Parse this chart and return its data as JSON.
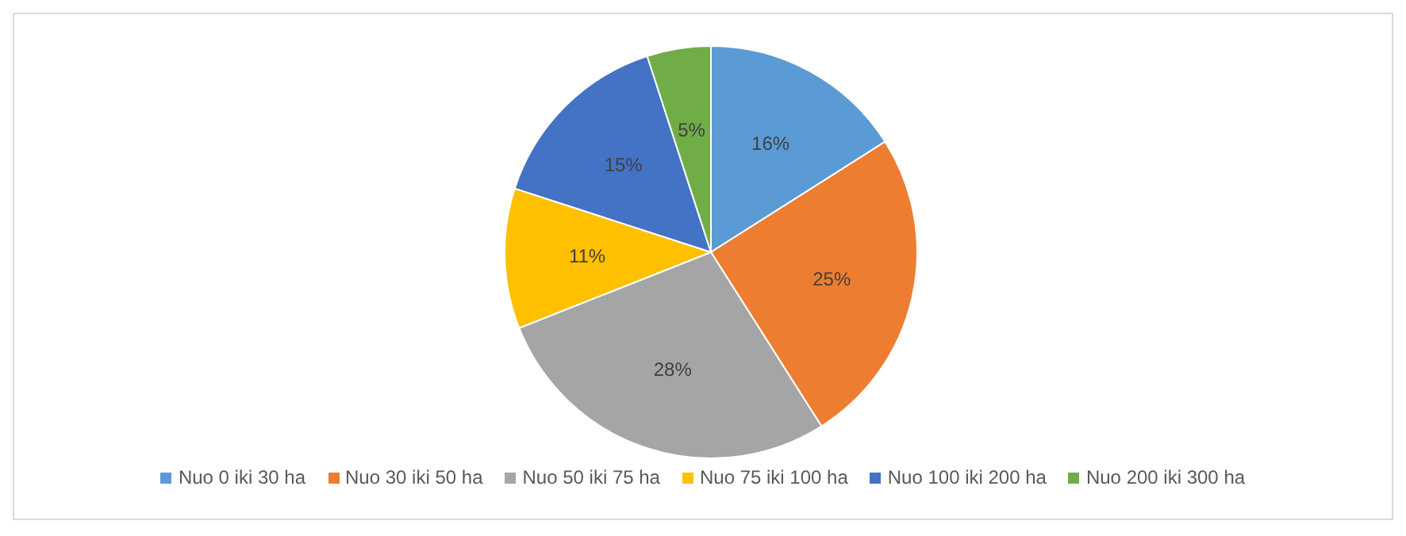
{
  "chart_data": {
    "type": "pie",
    "categories": [
      "Nuo 0 iki 30 ha",
      "Nuo 30 iki 50 ha",
      "Nuo 50 iki 75 ha",
      "Nuo 75 iki 100 ha",
      "Nuo 100 iki 200 ha",
      "Nuo 200 iki 300 ha"
    ],
    "values": [
      16,
      25,
      28,
      11,
      15,
      5
    ],
    "colors": [
      "#5b9bd5",
      "#ed7d31",
      "#a5a5a5",
      "#ffc000",
      "#4472c4",
      "#70ad47"
    ],
    "value_labels": [
      "16%",
      "25%",
      "28%",
      "11%",
      "15%",
      "5%"
    ],
    "legend": "bottom"
  }
}
